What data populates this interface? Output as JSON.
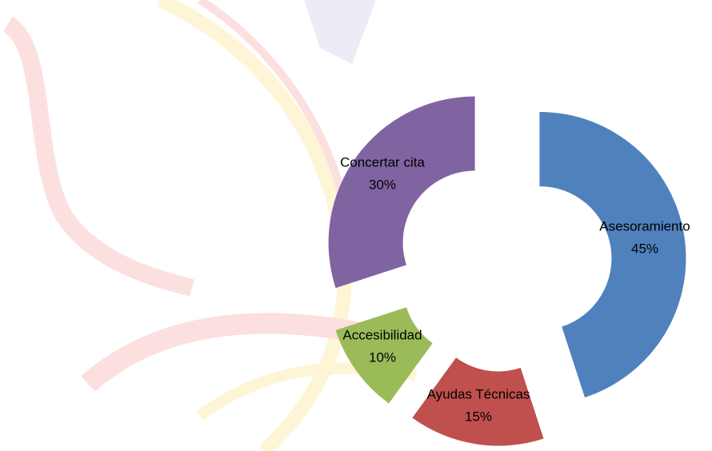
{
  "chart_data": {
    "type": "doughnut",
    "categories": [
      "Asesoramiento",
      "Ayudas Técnicas",
      "Accesibilidad",
      "Concertar cita"
    ],
    "values": [
      45,
      15,
      10,
      30
    ],
    "value_labels": [
      "45%",
      "15%",
      "10%",
      "30%"
    ],
    "colors": [
      "#4f81bd",
      "#c0504d",
      "#9bbb59",
      "#8064a2"
    ]
  }
}
